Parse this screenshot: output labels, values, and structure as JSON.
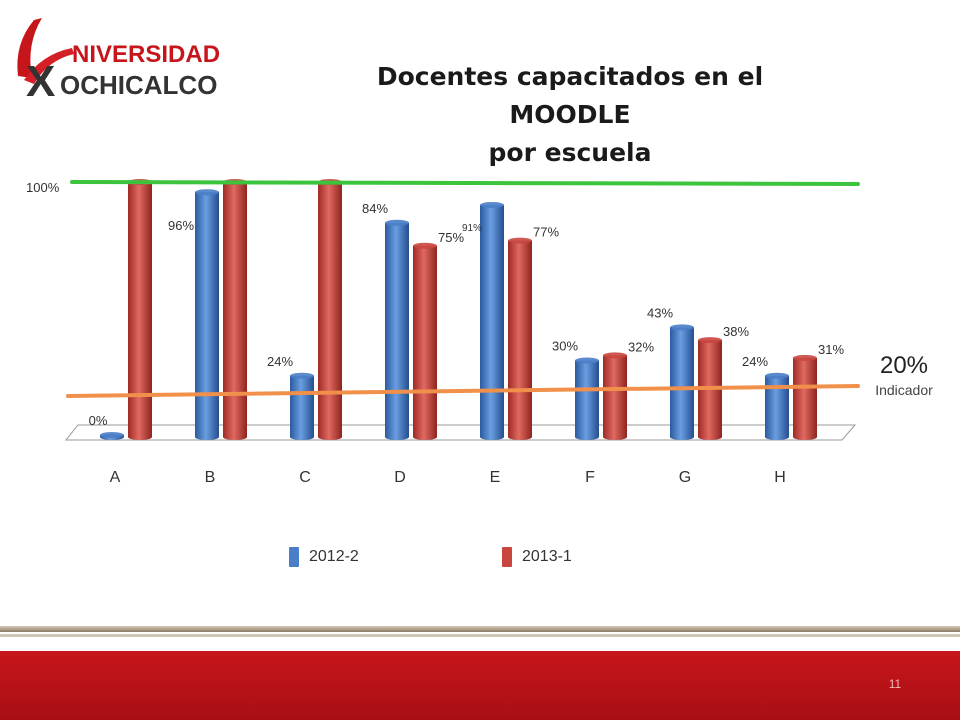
{
  "slide": {
    "title_line1": "Docentes capacitados en el MOODLE",
    "title_line2": "por escuela",
    "page_number": "11",
    "logo": {
      "text_top": "NIVERSIDAD",
      "text_bottom": "OCHICALCO",
      "letter": "X"
    }
  },
  "indicator": {
    "value": "20%",
    "label": "Indicador"
  },
  "colors": {
    "series_2012_2": "#4a7ec8",
    "series_2013_1": "#c9463f",
    "goal_line": "#3cc43c",
    "indicator_line": "#f0904a",
    "footer_red": "#c7161b"
  },
  "chart_data": {
    "type": "bar",
    "title": "Docentes capacitados en el MOODLE por escuela",
    "categories": [
      "A",
      "B",
      "C",
      "D",
      "E",
      "F",
      "G",
      "H"
    ],
    "series": [
      {
        "name": "2012-2",
        "values": [
          0,
          96,
          24,
          84,
          91,
          30,
          43,
          24
        ],
        "labels": [
          "0%",
          "96%",
          "24%",
          "84%",
          "91%",
          "30%",
          "43%",
          "24%"
        ]
      },
      {
        "name": "2013-1",
        "values": [
          100,
          100,
          100,
          75,
          77,
          32,
          38,
          31
        ],
        "labels": [
          "",
          "",
          "",
          "75%",
          "77%",
          "32%",
          "38%",
          "31%"
        ]
      }
    ],
    "ylim": [
      0,
      100
    ],
    "reference_lines": [
      {
        "label": "100%",
        "value": 100
      },
      {
        "label": "20%",
        "value": 20
      }
    ],
    "legend_position": "bottom",
    "grid": false
  }
}
